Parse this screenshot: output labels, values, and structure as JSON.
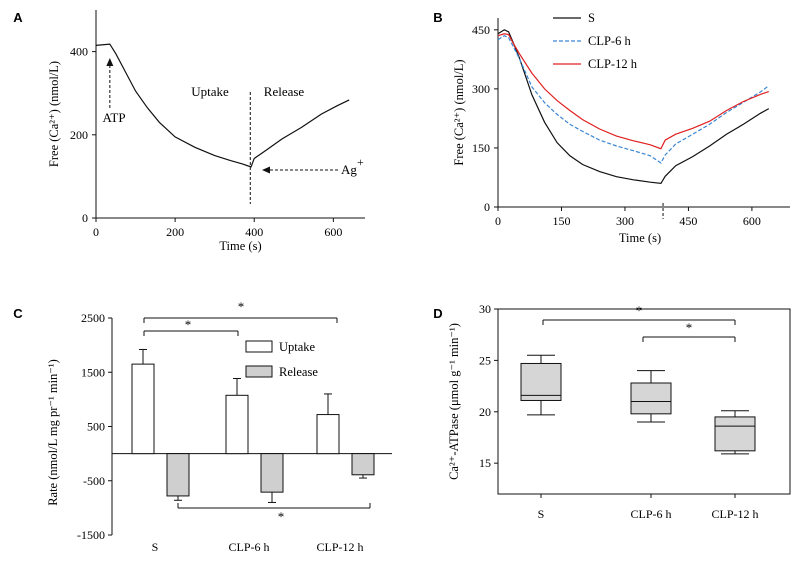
{
  "chart_data": [
    {
      "panel": "A",
      "type": "line",
      "xlabel": "Time (s)",
      "ylabel": "Free (Ca²⁺) (nmol/L)",
      "xlim": [
        0,
        680
      ],
      "ylim": [
        0,
        500
      ],
      "xticks": [
        0,
        200,
        400,
        600
      ],
      "yticks": [
        0,
        200,
        400
      ],
      "series": [
        {
          "color": "#111111",
          "x": [
            0,
            35,
            50,
            75,
            100,
            130,
            160,
            200,
            250,
            300,
            340,
            370,
            385,
            392,
            400,
            430,
            470,
            520,
            570,
            610,
            640
          ],
          "y": [
            415,
            418,
            395,
            350,
            305,
            265,
            230,
            195,
            170,
            150,
            138,
            130,
            125,
            123,
            143,
            163,
            190,
            218,
            250,
            270,
            284
          ]
        }
      ],
      "vline_x": 390,
      "annotations": {
        "atp": "ATP",
        "uptake": "Uptake",
        "release": "Release",
        "ag": "Ag",
        "ag_sup": "+"
      }
    },
    {
      "panel": "B",
      "type": "line",
      "xlabel": "Time (s)",
      "ylabel": "Free (Ca²⁺) (nmol/L)",
      "xlim": [
        0,
        690
      ],
      "ylim": [
        0,
        480
      ],
      "xticks": [
        0,
        150,
        300,
        450,
        600
      ],
      "yticks": [
        0,
        150,
        300,
        450
      ],
      "legend_position": "top-right",
      "series": [
        {
          "name": "S",
          "color": "#111111",
          "dash": "solid",
          "x": [
            0,
            15,
            25,
            35,
            50,
            80,
            110,
            140,
            170,
            200,
            240,
            280,
            320,
            360,
            385,
            395,
            420,
            460,
            500,
            540,
            580,
            620,
            640
          ],
          "y": [
            440,
            450,
            445,
            420,
            380,
            285,
            215,
            163,
            130,
            108,
            90,
            77,
            69,
            63,
            60,
            78,
            105,
            128,
            155,
            185,
            210,
            238,
            250
          ]
        },
        {
          "name": "CLP-6 h",
          "color": "#3a86d4",
          "dash": "dashed",
          "x": [
            0,
            15,
            25,
            35,
            50,
            80,
            110,
            140,
            170,
            200,
            240,
            280,
            320,
            360,
            385,
            395,
            420,
            460,
            500,
            540,
            580,
            620,
            640
          ],
          "y": [
            425,
            435,
            430,
            410,
            378,
            305,
            265,
            235,
            210,
            192,
            170,
            155,
            143,
            130,
            112,
            132,
            160,
            185,
            210,
            240,
            266,
            292,
            308
          ]
        },
        {
          "name": "CLP-12 h",
          "color": "#e02020",
          "dash": "solid",
          "x": [
            0,
            15,
            25,
            35,
            50,
            80,
            110,
            140,
            170,
            200,
            240,
            280,
            320,
            360,
            385,
            395,
            420,
            460,
            500,
            540,
            580,
            620,
            640
          ],
          "y": [
            435,
            440,
            438,
            418,
            390,
            340,
            300,
            270,
            245,
            222,
            198,
            180,
            168,
            158,
            148,
            170,
            185,
            200,
            218,
            245,
            268,
            286,
            293
          ]
        }
      ],
      "vline_x": 390
    },
    {
      "panel": "C",
      "type": "bar",
      "ylabel": "Rate (nmol/L mg pr⁻¹ min⁻¹)",
      "ylim": [
        -1500,
        2500
      ],
      "yticks": [
        -1500,
        -500,
        500,
        1500,
        2500
      ],
      "categories": [
        "S",
        "CLP-6 h",
        "CLP-12 h"
      ],
      "series": [
        {
          "name": "Uptake",
          "fill": "#ffffff",
          "values": [
            1650,
            1075,
            720
          ],
          "errors": [
            270,
            310,
            380
          ]
        },
        {
          "name": "Release",
          "fill": "#cfcfcf",
          "values": [
            -780,
            -710,
            -390
          ],
          "errors": [
            80,
            190,
            60
          ]
        }
      ],
      "legend_position": "top-right",
      "significance": [
        {
          "from": "S",
          "to": "CLP-6 h",
          "label": "*"
        },
        {
          "from": "S",
          "to": "CLP-12 h",
          "label": "*"
        },
        {
          "from": "S",
          "to": "CLP-12 h",
          "label": "*"
        }
      ]
    },
    {
      "panel": "D",
      "type": "box",
      "ylabel": "Ca²⁺-ATPase (μmol g⁻¹ min⁻¹)",
      "ylim": [
        12,
        30
      ],
      "yticks": [
        15,
        20,
        25,
        30
      ],
      "categories": [
        "S",
        "CLP-6 h",
        "CLP-12 h"
      ],
      "boxes": [
        {
          "min": 19.7,
          "q1": 21.1,
          "median": 21.6,
          "q3": 24.7,
          "max": 25.5
        },
        {
          "min": 19.0,
          "q1": 19.8,
          "median": 21.0,
          "q3": 22.8,
          "max": 24.0
        },
        {
          "min": 15.9,
          "q1": 16.2,
          "median": 18.6,
          "q3": 19.5,
          "max": 20.1
        }
      ],
      "significance": [
        {
          "from": "S",
          "to": "CLP-12 h",
          "label": "*"
        },
        {
          "from": "CLP-6 h",
          "to": "CLP-12 h",
          "label": "*"
        }
      ]
    }
  ]
}
